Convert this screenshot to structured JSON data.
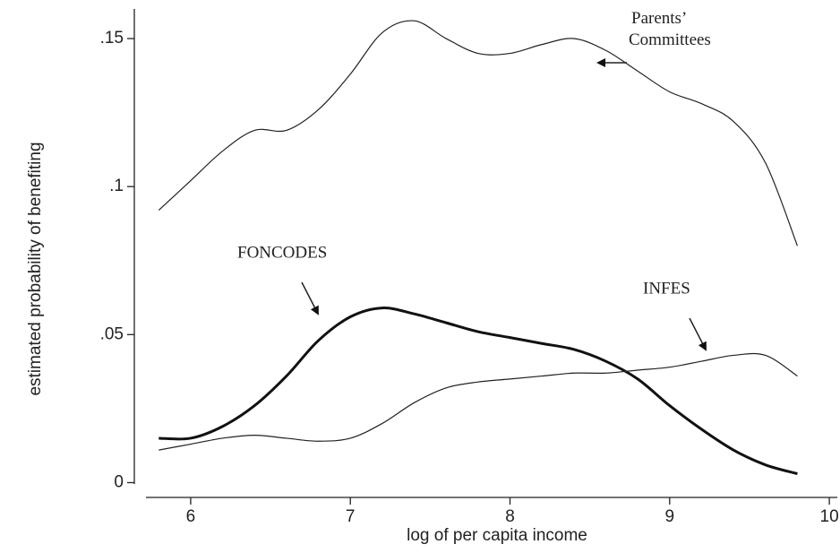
{
  "chart_data": {
    "type": "line",
    "xlabel": "log of per capita income",
    "ylabel": "estimated probability of benefiting",
    "x": [
      5.8,
      6.0,
      6.2,
      6.4,
      6.6,
      6.8,
      7.0,
      7.2,
      7.4,
      7.6,
      7.8,
      8.0,
      8.2,
      8.4,
      8.6,
      8.8,
      9.0,
      9.2,
      9.4,
      9.6,
      9.8
    ],
    "series": [
      {
        "name": "Parents’ Committees",
        "color": "#222222",
        "line_width": 1.2,
        "values": [
          0.092,
          0.102,
          0.112,
          0.119,
          0.119,
          0.126,
          0.138,
          0.152,
          0.156,
          0.15,
          0.145,
          0.145,
          0.148,
          0.15,
          0.146,
          0.139,
          0.132,
          0.128,
          0.122,
          0.108,
          0.08
        ]
      },
      {
        "name": "FONCODES",
        "color": "#111111",
        "line_width": 3,
        "values": [
          0.015,
          0.015,
          0.019,
          0.026,
          0.036,
          0.048,
          0.056,
          0.059,
          0.057,
          0.054,
          0.051,
          0.049,
          0.047,
          0.045,
          0.041,
          0.035,
          0.026,
          0.018,
          0.011,
          0.006,
          0.003
        ]
      },
      {
        "name": "INFES",
        "color": "#222222",
        "line_width": 1.2,
        "values": [
          0.011,
          0.013,
          0.015,
          0.016,
          0.015,
          0.014,
          0.015,
          0.02,
          0.027,
          0.032,
          0.034,
          0.035,
          0.036,
          0.037,
          0.037,
          0.038,
          0.039,
          0.041,
          0.043,
          0.043,
          0.036
        ]
      }
    ],
    "xlim": [
      5.72,
      10.05
    ],
    "ylim": [
      -0.005,
      0.16
    ],
    "xticks": [
      6,
      7,
      8,
      9,
      10
    ],
    "yticks": [
      0,
      {
        "value": 0.05,
        "label": ".05"
      },
      {
        "value": 0.1,
        "label": ".1"
      },
      {
        "value": 0.15,
        "label": ".15"
      }
    ],
    "grid": false
  }
}
